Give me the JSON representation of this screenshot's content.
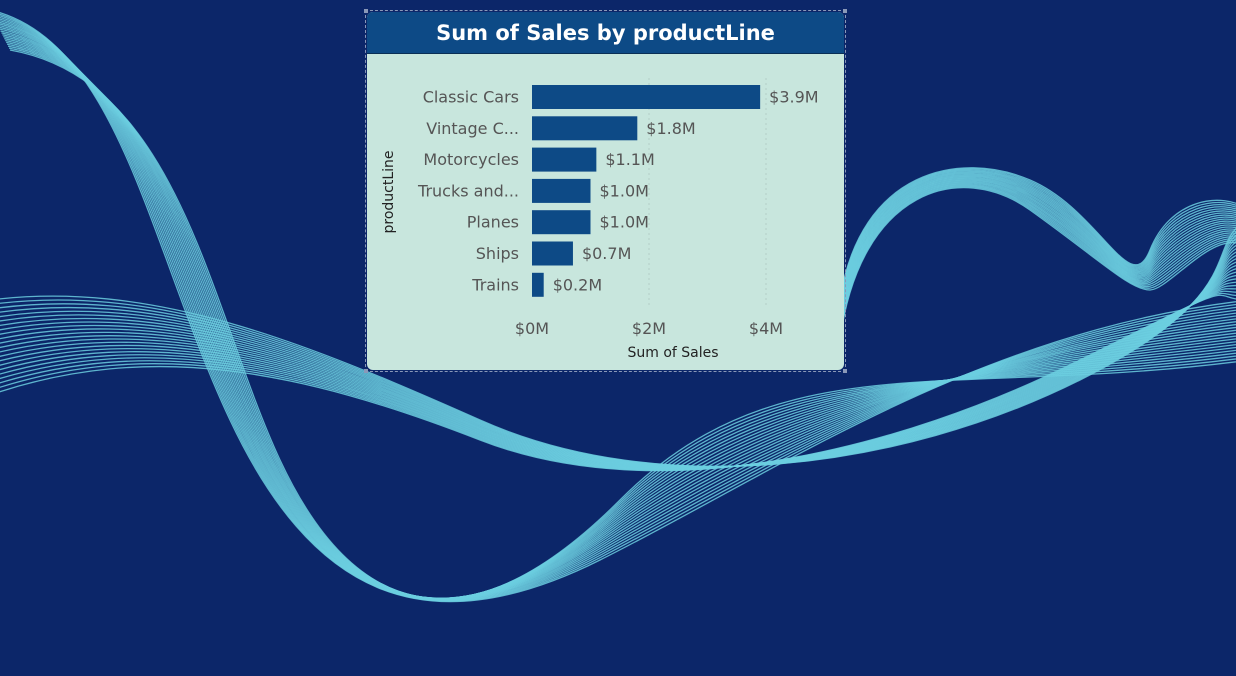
{
  "visual": {
    "title": "Sum of Sales by productLine"
  },
  "colors": {
    "background": "#0c2669",
    "wave": "#6ccfe0",
    "card": "#c8e6dd",
    "header": "#0d4a86",
    "bar": "#0d4a86"
  },
  "chart_data": {
    "type": "bar",
    "orientation": "horizontal",
    "title": "Sum of Sales by productLine",
    "xlabel": "Sum of Sales",
    "ylabel": "productLine",
    "categories": [
      "Classic Cars",
      "Vintage C...",
      "Motorcycles",
      "Trucks and...",
      "Planes",
      "Ships",
      "Trains"
    ],
    "values": [
      3.9,
      1.8,
      1.1,
      1.0,
      1.0,
      0.7,
      0.2
    ],
    "value_labels": [
      "$3.9M",
      "$1.8M",
      "$1.1M",
      "$1.0M",
      "$1.0M",
      "$0.7M",
      "$0.2M"
    ],
    "x_ticks": [
      0,
      2,
      4
    ],
    "x_tick_labels": [
      "$0M",
      "$2M",
      "$4M"
    ],
    "xlim": [
      0,
      4
    ],
    "unit": "M",
    "grid": "vertical dotted",
    "legend": "none"
  }
}
